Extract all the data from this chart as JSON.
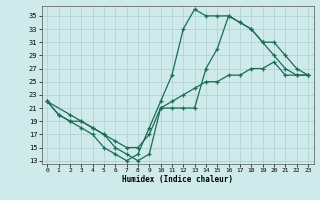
{
  "xlabel": "Humidex (Indice chaleur)",
  "background_color": "#ceeaea",
  "grid_color": "#aed0d0",
  "line_color": "#1a6b5a",
  "xlim": [
    -0.5,
    23.5
  ],
  "ylim": [
    12.5,
    36.5
  ],
  "yticks": [
    13,
    15,
    17,
    19,
    21,
    23,
    25,
    27,
    29,
    31,
    33,
    35
  ],
  "xticks": [
    0,
    1,
    2,
    3,
    4,
    5,
    6,
    7,
    8,
    9,
    10,
    11,
    12,
    13,
    14,
    15,
    16,
    17,
    18,
    19,
    20,
    21,
    22,
    23
  ],
  "line1_x": [
    0,
    1,
    2,
    3,
    4,
    5,
    6,
    7,
    8,
    9,
    10,
    11,
    12,
    13,
    14,
    15,
    16,
    17,
    18,
    19,
    20,
    21,
    22,
    23
  ],
  "line1_y": [
    22,
    20,
    19,
    18,
    17,
    15,
    14,
    13,
    14,
    18,
    22,
    26,
    33,
    36,
    35,
    35,
    35,
    34,
    33,
    31,
    29,
    27,
    26,
    26
  ],
  "line2_x": [
    0,
    2,
    3,
    4,
    5,
    6,
    7,
    8,
    9,
    10,
    11,
    12,
    13,
    14,
    15,
    16,
    17,
    18,
    19,
    20,
    21,
    22,
    23
  ],
  "line2_y": [
    22,
    20,
    19,
    18,
    17,
    15,
    14,
    13,
    14,
    21,
    21,
    21,
    21,
    27,
    30,
    35,
    34,
    33,
    31,
    31,
    29,
    27,
    26
  ],
  "line3_x": [
    0,
    1,
    2,
    3,
    4,
    5,
    6,
    7,
    8,
    9,
    10,
    11,
    12,
    13,
    14,
    15,
    16,
    17,
    18,
    19,
    20,
    21,
    22,
    23
  ],
  "line3_y": [
    22,
    20,
    19,
    19,
    18,
    17,
    16,
    15,
    15,
    17,
    21,
    22,
    23,
    24,
    25,
    25,
    26,
    26,
    27,
    27,
    28,
    26,
    26,
    26
  ]
}
